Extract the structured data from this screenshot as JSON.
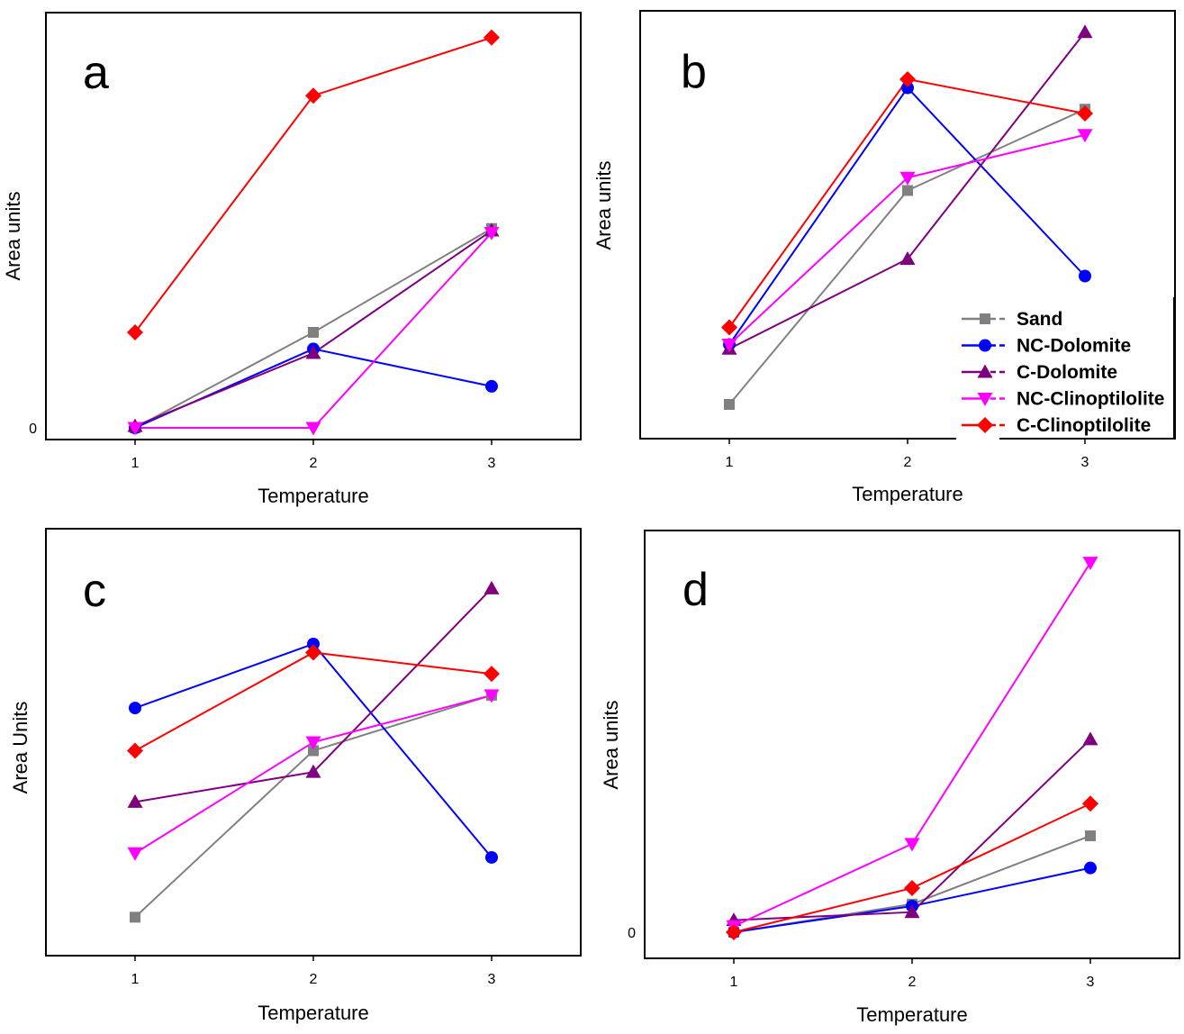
{
  "chart_data": [
    {
      "type": "line",
      "panel_label": "a",
      "xlabel": "Temperature",
      "ylabel": "Area units",
      "x": [
        1,
        2,
        3
      ],
      "xlim": [
        0.5,
        3.5
      ],
      "ylim": [
        0,
        100
      ],
      "y_tick_labels": [
        "0"
      ],
      "grid": false,
      "series": [
        {
          "name": "Sand",
          "values": [
            0,
            23,
            48
          ]
        },
        {
          "name": "NC-Dolomite",
          "values": [
            0,
            19,
            10
          ]
        },
        {
          "name": "C-Dolomite",
          "values": [
            0.4,
            18,
            47.5
          ]
        },
        {
          "name": "NC-Clinoptilolite",
          "values": [
            0,
            0,
            47
          ]
        },
        {
          "name": "C-Clinoptilolite",
          "values": [
            23,
            80,
            94
          ]
        }
      ]
    },
    {
      "type": "line",
      "panel_label": "b",
      "xlabel": "Temperature",
      "ylabel": "Area units",
      "x": [
        1,
        2,
        3
      ],
      "xlim": [
        0.5,
        3.5
      ],
      "ylim": [
        0,
        100
      ],
      "y_tick_labels": [],
      "grid": false,
      "legend": "bottom-right",
      "series": [
        {
          "name": "Sand",
          "values": [
            8,
            58,
            77
          ]
        },
        {
          "name": "NC-Dolomite",
          "values": [
            22,
            82,
            38
          ]
        },
        {
          "name": "C-Dolomite",
          "values": [
            21,
            42,
            95
          ]
        },
        {
          "name": "NC-Clinoptilolite",
          "values": [
            22,
            61,
            71
          ]
        },
        {
          "name": "C-Clinoptilolite",
          "values": [
            26,
            84,
            76
          ]
        }
      ]
    },
    {
      "type": "line",
      "panel_label": "c",
      "xlabel": "Temperature",
      "ylabel": "Area Units",
      "x": [
        1,
        2,
        3
      ],
      "xlim": [
        0.5,
        3.5
      ],
      "ylim": [
        0,
        100
      ],
      "y_tick_labels": [],
      "grid": false,
      "series": [
        {
          "name": "Sand",
          "values": [
            9,
            48,
            61
          ]
        },
        {
          "name": "NC-Dolomite",
          "values": [
            58,
            73,
            23
          ]
        },
        {
          "name": "C-Dolomite",
          "values": [
            36,
            43,
            86
          ]
        },
        {
          "name": "NC-Clinoptilolite",
          "values": [
            24,
            50,
            61
          ]
        },
        {
          "name": "C-Clinoptilolite",
          "values": [
            48,
            71,
            66
          ]
        }
      ]
    },
    {
      "type": "line",
      "panel_label": "d",
      "xlabel": "Temperature",
      "ylabel": "Area units",
      "x": [
        1,
        2,
        3
      ],
      "xlim": [
        0.5,
        3.5
      ],
      "ylim": [
        0,
        100
      ],
      "y_tick_labels": [
        "0"
      ],
      "grid": false,
      "series": [
        {
          "name": "Sand",
          "values": [
            0,
            7,
            24
          ]
        },
        {
          "name": "NC-Dolomite",
          "values": [
            0,
            6.5,
            16
          ]
        },
        {
          "name": "C-Dolomite",
          "values": [
            3,
            5,
            48
          ]
        },
        {
          "name": "NC-Clinoptilolite",
          "values": [
            1.5,
            22,
            92
          ]
        },
        {
          "name": "C-Clinoptilolite",
          "values": [
            0,
            11,
            32
          ]
        }
      ]
    }
  ],
  "series_styles": [
    {
      "name": "Sand",
      "color": "#808080",
      "marker": "square"
    },
    {
      "name": "NC-Dolomite",
      "color": "#0000ff",
      "marker": "circle"
    },
    {
      "name": "C-Dolomite",
      "color": "#7f007f",
      "marker": "triangle-up"
    },
    {
      "name": "NC-Clinoptilolite",
      "color": "#ff00ff",
      "marker": "triangle-down"
    },
    {
      "name": "C-Clinoptilolite",
      "color": "#ff0000",
      "marker": "diamond"
    }
  ]
}
